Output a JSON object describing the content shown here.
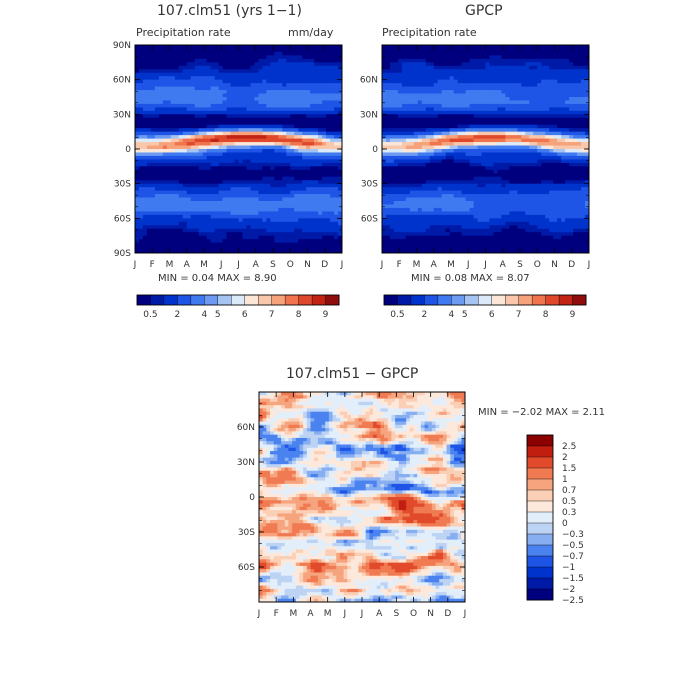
{
  "palettes": {
    "precip": [
      "#00007f",
      "#001aa8",
      "#0033cc",
      "#1f55e6",
      "#3f7af0",
      "#6d9bf2",
      "#a6c4f2",
      "#dce9f8",
      "#fbe6d8",
      "#f9c8ac",
      "#f6a27a",
      "#f0744d",
      "#e0482b",
      "#c12414",
      "#8f0d0d"
    ],
    "diff": [
      "#00007f",
      "#001aa8",
      "#0033cc",
      "#1f55e6",
      "#4a82f0",
      "#86aef0",
      "#bcd3f4",
      "#e3eefb",
      "#fde8dc",
      "#fbcfb5",
      "#f6a47e",
      "#f07a52",
      "#e14b2b",
      "#c21e10",
      "#8b0000"
    ]
  },
  "chart_data": [
    {
      "type": "heatmap",
      "title": "107.clm51 (yrs 1−1)",
      "subtitle_left": "Precipitation rate",
      "subtitle_right": "mm/day",
      "x_ticks": [
        "J",
        "F",
        "M",
        "A",
        "M",
        "J",
        "J",
        "A",
        "S",
        "O",
        "N",
        "D",
        "J"
      ],
      "y_ticks": [
        "90N",
        "60N",
        "30N",
        "0",
        "30S",
        "60S",
        "90S"
      ],
      "stats": "MIN =    0.04 MAX =    8.90",
      "min": 0.04,
      "max": 8.9,
      "colorbar_labels": [
        "0.5",
        "2",
        "4",
        "5",
        "6",
        "7",
        "8",
        "9"
      ],
      "ylim": [
        -90,
        90
      ]
    },
    {
      "type": "heatmap",
      "title": "GPCP",
      "subtitle_left": "Precipitation rate",
      "x_ticks": [
        "J",
        "F",
        "M",
        "A",
        "M",
        "J",
        "J",
        "A",
        "S",
        "O",
        "N",
        "D",
        "J"
      ],
      "y_ticks": [
        "60N",
        "30N",
        "0",
        "30S",
        "60S"
      ],
      "stats": "MIN =    0.08 MAX =    8.07",
      "min": 0.08,
      "max": 8.07,
      "colorbar_labels": [
        "0.5",
        "2",
        "4",
        "5",
        "6",
        "7",
        "8",
        "9"
      ],
      "ylim": [
        -90,
        90
      ]
    },
    {
      "type": "heatmap",
      "title": "107.clm51 − GPCP",
      "x_ticks": [
        "J",
        "F",
        "M",
        "A",
        "M",
        "J",
        "J",
        "A",
        "S",
        "O",
        "N",
        "D",
        "J"
      ],
      "y_ticks": [
        "60N",
        "30N",
        "0",
        "30S",
        "60S"
      ],
      "stats": "MIN =  −2.02 MAX =    2.11",
      "min": -2.02,
      "max": 2.11,
      "colorbar_labels": [
        "2.5",
        "2",
        "1.5",
        "1",
        "0.7",
        "0.5",
        "0.3",
        "0",
        "−0.3",
        "−0.5",
        "−0.7",
        "−1",
        "−1.5",
        "−2",
        "−2.5"
      ],
      "ylim": [
        -90,
        90
      ]
    }
  ]
}
